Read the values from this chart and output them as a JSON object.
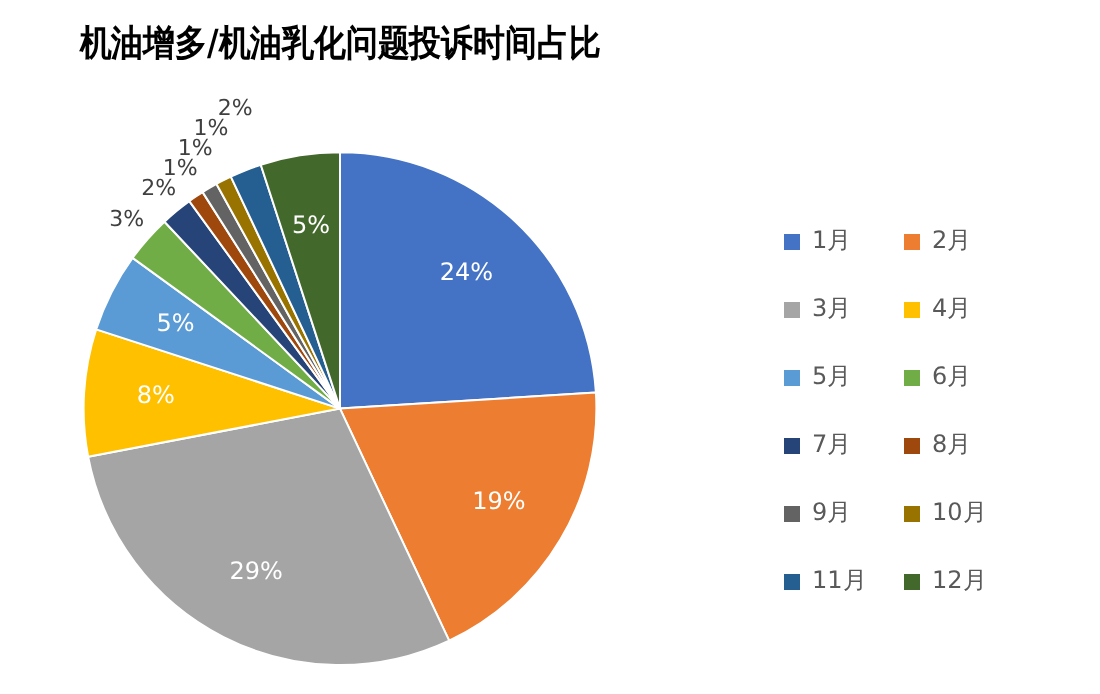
{
  "chart_data": {
    "type": "pie",
    "title": "机油增多/机油乳化问题投诉时间占比",
    "categories": [
      "1月",
      "2月",
      "3月",
      "4月",
      "5月",
      "6月",
      "7月",
      "8月",
      "9月",
      "10月",
      "11月",
      "12月"
    ],
    "values": [
      24,
      19,
      29,
      8,
      5,
      3,
      2,
      1,
      1,
      1,
      2,
      5
    ],
    "value_labels": [
      "24%",
      "19%",
      "29%",
      "8%",
      "5%",
      "3%",
      "2%",
      "1%",
      "1%",
      "1%",
      "2%",
      "5%"
    ],
    "colors": [
      "#4472c4",
      "#ed7d31",
      "#a5a5a5",
      "#ffc000",
      "#5b9bd5",
      "#70ad47",
      "#264478",
      "#9e480e",
      "#636363",
      "#997300",
      "#255e91",
      "#43682b"
    ],
    "legend": "right"
  }
}
